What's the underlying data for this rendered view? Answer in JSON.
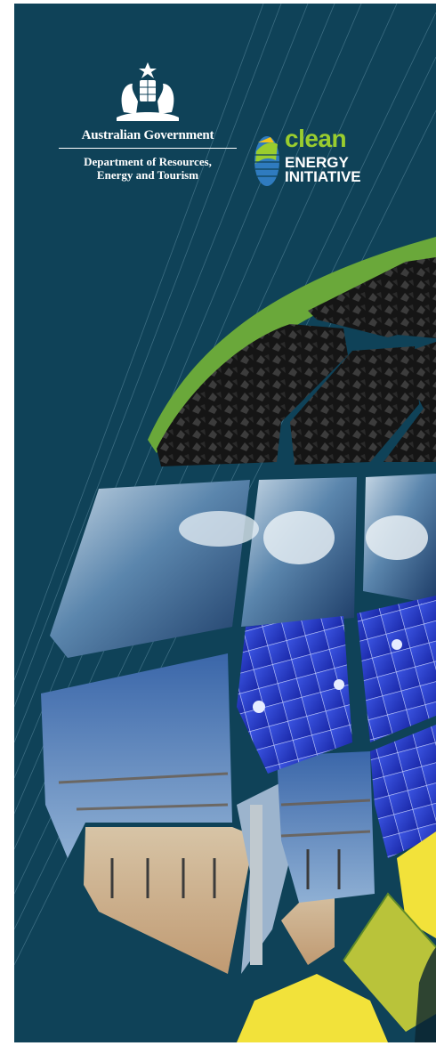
{
  "government": {
    "name": "Australian Government",
    "department_line1": "Department of Resources,",
    "department_line2": "Energy and Tourism"
  },
  "initiative": {
    "word1": "clean",
    "word2": "ENERGY",
    "word3": "INITIATIVE"
  },
  "tiles": [
    {
      "name": "grass",
      "color": "#6aa83a"
    },
    {
      "name": "coal",
      "color": "#1c1c1c"
    },
    {
      "name": "ocean",
      "color": "#3f6f9b"
    },
    {
      "name": "solar-panel",
      "color": "#2639c9"
    },
    {
      "name": "solar-thermal",
      "color": "#8ea7c6"
    },
    {
      "name": "canola",
      "color": "#f2e23a"
    }
  ],
  "colors": {
    "background": "#0f4258",
    "accent_green": "#9acd2e"
  }
}
